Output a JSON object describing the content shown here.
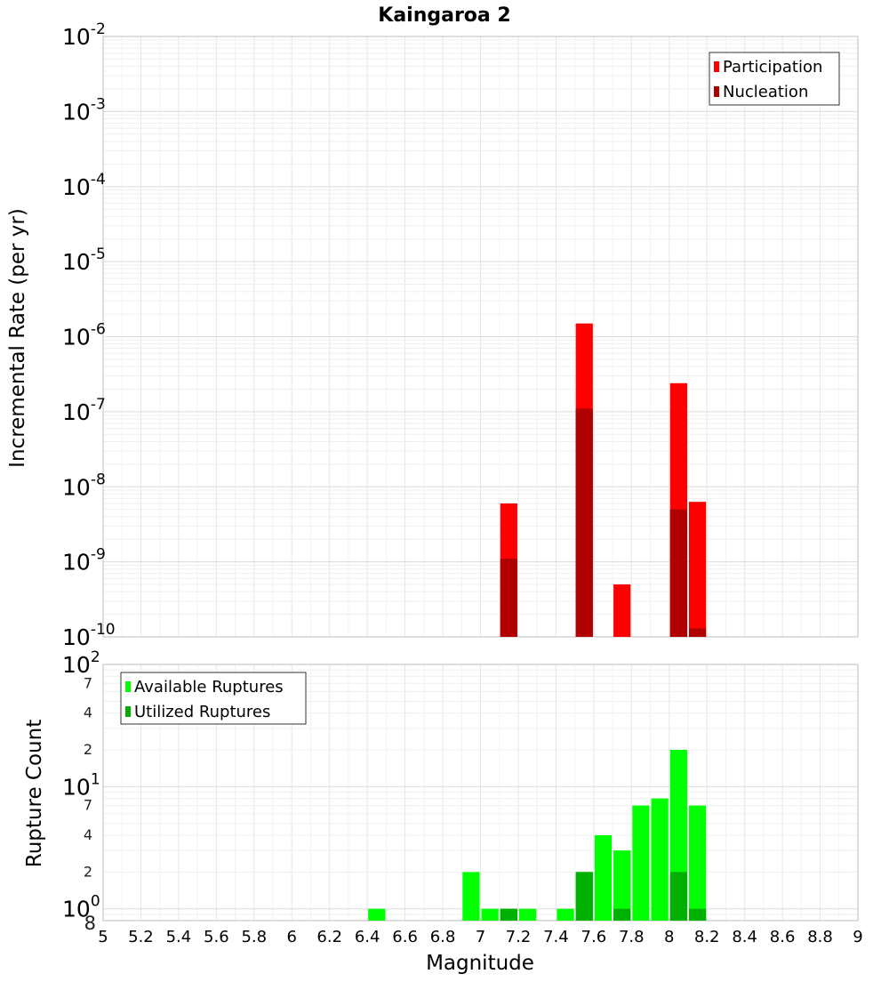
{
  "chart_data": [
    {
      "type": "bar",
      "title": "Kaingaroa 2",
      "ylabel": "Incremental Rate (per yr)",
      "xlabel": "",
      "yscale": "log",
      "ylim": [
        1e-10,
        0.01
      ],
      "xlim": [
        5,
        9
      ],
      "grid": true,
      "legend_position": "top-right",
      "y_tick_labels": [
        {
          "base": "10",
          "exp": "-10"
        },
        {
          "base": "10",
          "exp": "-9"
        },
        {
          "base": "10",
          "exp": "-8"
        },
        {
          "base": "10",
          "exp": "-7"
        },
        {
          "base": "10",
          "exp": "-6"
        },
        {
          "base": "10",
          "exp": "-5"
        },
        {
          "base": "10",
          "exp": "-4"
        },
        {
          "base": "10",
          "exp": "-3"
        },
        {
          "base": "10",
          "exp": "-2"
        }
      ],
      "series": [
        {
          "name": "Participation",
          "color": "#ff0000",
          "x": [
            7.15,
            7.55,
            7.75,
            8.05,
            8.15
          ],
          "values": [
            6e-09,
            1.5e-06,
            5e-10,
            2.4e-07,
            6.3e-09
          ]
        },
        {
          "name": "Nucleation",
          "color": "#b00000",
          "x": [
            7.15,
            7.55,
            8.05,
            8.15
          ],
          "values": [
            1.1e-09,
            1.1e-07,
            5e-09,
            1.3e-10
          ]
        }
      ]
    },
    {
      "type": "bar",
      "title": "",
      "ylabel": "Rupture Count",
      "xlabel": "Magnitude",
      "yscale": "log",
      "ylim": [
        0.8,
        100
      ],
      "xlim": [
        5,
        9
      ],
      "grid": true,
      "legend_position": "top-left",
      "x_tick_labels": [
        "5",
        "5.2",
        "5.4",
        "5.6",
        "5.8",
        "6",
        "6.2",
        "6.4",
        "6.6",
        "6.8",
        "7",
        "7.2",
        "7.4",
        "7.6",
        "7.8",
        "8",
        "8.2",
        "8.4",
        "8.6",
        "8.8",
        "9"
      ],
      "y_major_tick_labels": [
        {
          "base": "10",
          "exp": "0",
          "value": 1
        },
        {
          "base": "10",
          "exp": "1",
          "value": 10
        },
        {
          "base": "10",
          "exp": "2",
          "value": 100
        }
      ],
      "y_minor_tick_labels": [
        {
          "label": "8",
          "value": 0.8
        },
        {
          "label": "2",
          "value": 2
        },
        {
          "label": "4",
          "value": 4
        },
        {
          "label": "7",
          "value": 7
        },
        {
          "label": "2",
          "value": 20
        },
        {
          "label": "4",
          "value": 40
        },
        {
          "label": "7",
          "value": 70
        }
      ],
      "series": [
        {
          "name": "Available Ruptures",
          "color": "#00ff00",
          "x": [
            6.45,
            6.95,
            7.05,
            7.15,
            7.25,
            7.45,
            7.55,
            7.65,
            7.75,
            7.85,
            7.95,
            8.05,
            8.15
          ],
          "values": [
            1,
            2,
            1,
            1,
            1,
            1,
            2,
            4,
            3,
            7,
            8,
            20,
            7
          ]
        },
        {
          "name": "Utilized Ruptures",
          "color": "#00b000",
          "x": [
            7.15,
            7.55,
            7.75,
            8.05,
            8.15
          ],
          "values": [
            1,
            2,
            1,
            2,
            1
          ]
        }
      ]
    }
  ]
}
